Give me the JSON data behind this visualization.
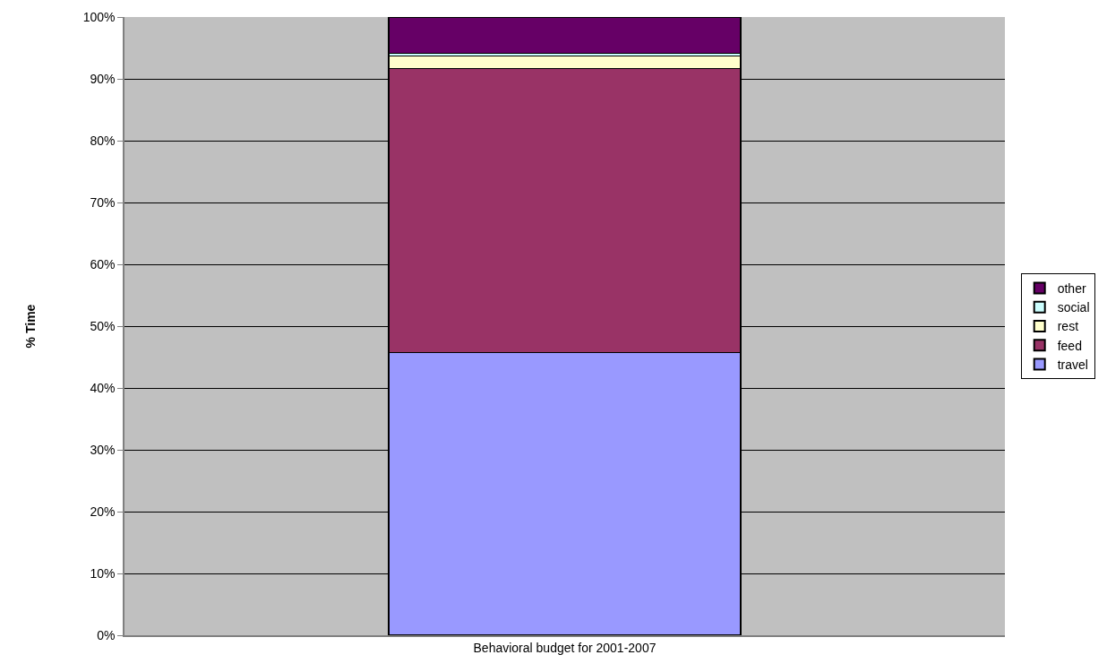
{
  "chart_data": {
    "type": "bar",
    "stacked": true,
    "ylabel": "% Time",
    "categories": [
      "Behavioral budget for 2001-2007"
    ],
    "series": [
      {
        "name": "travel",
        "color": "#9999ff",
        "values": [
          45.7
        ]
      },
      {
        "name": "feed",
        "color": "#993366",
        "values": [
          46.0
        ]
      },
      {
        "name": "rest",
        "color": "#ffffcc",
        "values": [
          2.0
        ]
      },
      {
        "name": "social",
        "color": "#ccffff",
        "values": [
          0.4
        ]
      },
      {
        "name": "other",
        "color": "#660066",
        "values": [
          5.9
        ]
      }
    ],
    "ylim": [
      0,
      100
    ],
    "yticks": [
      {
        "value": 0,
        "label": "0%"
      },
      {
        "value": 10,
        "label": "10%"
      },
      {
        "value": 20,
        "label": "20%"
      },
      {
        "value": 30,
        "label": "30%"
      },
      {
        "value": 40,
        "label": "40%"
      },
      {
        "value": 50,
        "label": "50%"
      },
      {
        "value": 60,
        "label": "60%"
      },
      {
        "value": 70,
        "label": "70%"
      },
      {
        "value": 80,
        "label": "80%"
      },
      {
        "value": 90,
        "label": "90%"
      },
      {
        "value": 100,
        "label": "100%"
      }
    ],
    "grid": "y",
    "legend": "right"
  }
}
